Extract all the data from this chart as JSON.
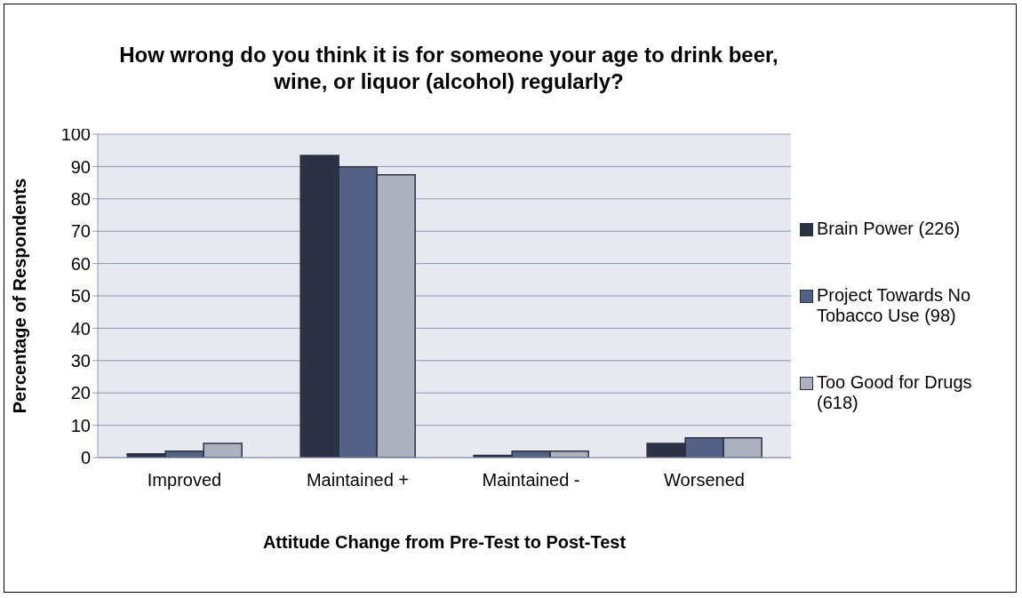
{
  "chart_data": {
    "type": "bar",
    "title": "How wrong do you think it is for someone your age to drink beer, wine, or liquor (alcohol) regularly?",
    "xlabel": "Attitude Change from Pre-Test to Post-Test",
    "ylabel": "Percentage of Respondents",
    "categories": [
      "Improved",
      "Maintained +",
      "Maintained -",
      "Worsened"
    ],
    "series": [
      {
        "name": "Brain Power (226)",
        "color": "#2d3146",
        "values": [
          1.2,
          93.4,
          0.7,
          4.4
        ]
      },
      {
        "name": "Project Towards No Tobacco Use (98)",
        "color": "#536184",
        "values": [
          2.0,
          89.9,
          2.0,
          6.1
        ]
      },
      {
        "name": "Too Good for Drugs (618)",
        "color": "#adb1bd",
        "values": [
          4.4,
          87.4,
          2.0,
          6.1
        ]
      }
    ],
    "ylim": [
      0,
      100
    ],
    "yticks": [
      0,
      10,
      20,
      30,
      40,
      50,
      60,
      70,
      80,
      90,
      100
    ],
    "grid": "y",
    "legend": "right"
  }
}
